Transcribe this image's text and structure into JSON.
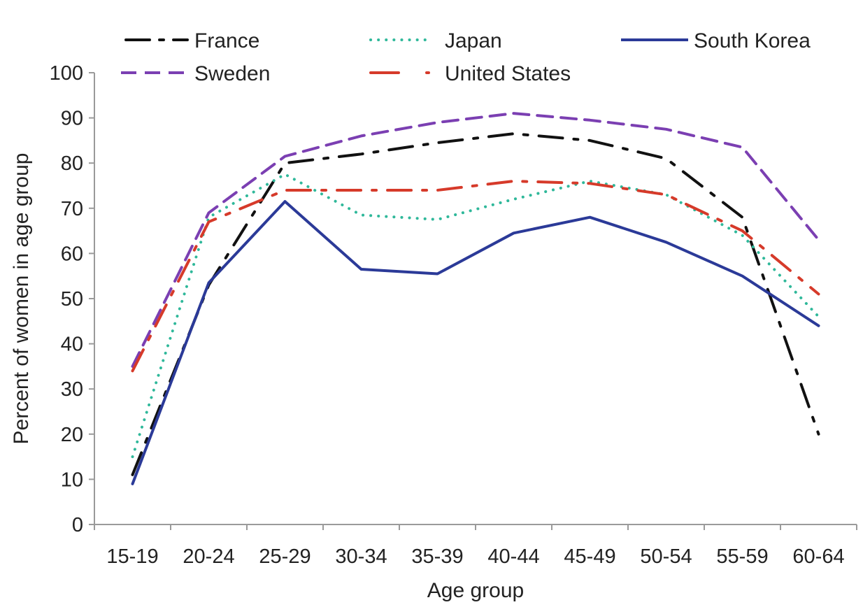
{
  "chart_data": {
    "type": "line",
    "xlabel": "Age group",
    "ylabel": "Percent of women in age group",
    "ylim": [
      0,
      100
    ],
    "yticks": [
      0,
      10,
      20,
      30,
      40,
      50,
      60,
      70,
      80,
      90,
      100
    ],
    "categories": [
      "15-19",
      "20-24",
      "25-29",
      "30-34",
      "35-39",
      "40-44",
      "45-49",
      "50-54",
      "55-59",
      "60-64"
    ],
    "grid": false,
    "legend_position": "top",
    "series": [
      {
        "name": "France",
        "color": "#111111",
        "style": "long-dash-dot",
        "values": [
          11,
          53,
          80,
          82,
          84.5,
          86.5,
          85,
          81,
          68,
          20
        ]
      },
      {
        "name": "Japan",
        "color": "#2fb89a",
        "style": "dotted",
        "values": [
          15,
          68,
          77.5,
          68.5,
          67.5,
          72,
          76,
          73,
          64,
          46
        ]
      },
      {
        "name": "South Korea",
        "color": "#2b3a98",
        "style": "solid",
        "values": [
          9,
          53.5,
          71.5,
          56.5,
          55.5,
          64.5,
          68,
          62.5,
          55,
          44
        ]
      },
      {
        "name": "Sweden",
        "color": "#7b3fb2",
        "style": "dashed",
        "values": [
          35,
          69,
          81.5,
          86,
          89,
          91,
          89.5,
          87.5,
          83.5,
          63
        ]
      },
      {
        "name": "United States",
        "color": "#d63a2a",
        "style": "long-dash-dot",
        "values": [
          34,
          67,
          74,
          74,
          74,
          76,
          75.5,
          73,
          65,
          51
        ]
      }
    ]
  }
}
